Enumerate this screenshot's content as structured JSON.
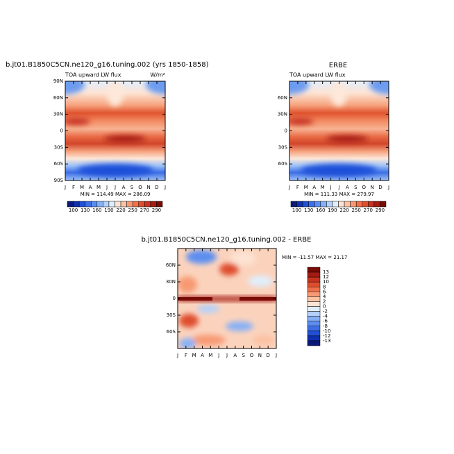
{
  "chart_data": [
    {
      "type": "contour",
      "title": "b.jt01.B1850C5CN.ne120_g16.tuning.002 (yrs 1850-1858)",
      "subtitle": "TOA upward LW flux",
      "units": "W/m²",
      "categories": [
        "J",
        "F",
        "M",
        "A",
        "M",
        "J",
        "J",
        "A",
        "S",
        "O",
        "N",
        "D",
        "J"
      ],
      "ylim": [
        -90,
        90
      ],
      "yticks": [
        {
          "value": 90,
          "label": "90N"
        },
        {
          "value": 60,
          "label": "60N"
        },
        {
          "value": 30,
          "label": "30N"
        },
        0,
        {
          "value": -30,
          "label": "30S"
        },
        {
          "value": -60,
          "label": "60S"
        },
        {
          "value": -90,
          "label": "90S"
        }
      ],
      "stats": "MIN = 114.49 MAX = 286.09",
      "colorbar_labels": [
        100,
        130,
        160,
        190,
        220,
        250,
        270,
        290
      ],
      "colors": [
        "#0b1a7a",
        "#0f30b0",
        "#2150d6",
        "#3d6ee6",
        "#5b8ef0",
        "#86b0f6",
        "#b3d1fb",
        "#e0eefc",
        "#fde3d3",
        "#fbc2a4",
        "#f79a73",
        "#ef7049",
        "#de4e2e",
        "#c63320",
        "#a51b12",
        "#7a0a05"
      ]
    },
    {
      "type": "contour",
      "title": "ERBE",
      "subtitle": "TOA upward LW flux",
      "categories": [
        "J",
        "F",
        "M",
        "A",
        "M",
        "J",
        "J",
        "A",
        "S",
        "O",
        "N",
        "D",
        "J"
      ],
      "ylim": [
        -90,
        90
      ],
      "yticks": [
        {
          "value": 60,
          "label": "60N"
        },
        {
          "value": 30,
          "label": "30N"
        },
        0,
        {
          "value": -30,
          "label": "30S"
        },
        {
          "value": -60,
          "label": "60S"
        }
      ],
      "stats": "MIN = 111.33 MAX = 279.97",
      "colorbar_labels": [
        100,
        130,
        160,
        190,
        220,
        250,
        270,
        290
      ],
      "colors": [
        "#0b1a7a",
        "#0f30b0",
        "#2150d6",
        "#3d6ee6",
        "#5b8ef0",
        "#86b0f6",
        "#b3d1fb",
        "#e0eefc",
        "#fde3d3",
        "#fbc2a4",
        "#f79a73",
        "#ef7049",
        "#de4e2e",
        "#c63320",
        "#a51b12",
        "#7a0a05"
      ]
    },
    {
      "type": "contour",
      "title": "b.jt01.B1850C5CN.ne120_g16.tuning.002 - ERBE",
      "categories": [
        "J",
        "F",
        "M",
        "A",
        "M",
        "J",
        "J",
        "A",
        "S",
        "O",
        "N",
        "D",
        "J"
      ],
      "ylim": [
        -90,
        90
      ],
      "yticks": [
        {
          "value": 60,
          "label": "60N"
        },
        {
          "value": 30,
          "label": "30N"
        },
        0,
        {
          "value": -30,
          "label": "30S"
        },
        {
          "value": -60,
          "label": "60S"
        }
      ],
      "stats": "MIN = -11.57 MAX =  21.17",
      "colorbar_labels": [
        13,
        12,
        10,
        8,
        6,
        4,
        2,
        0,
        -2,
        -4,
        -6,
        -8,
        -10,
        -12,
        -13
      ],
      "colors": [
        "#7a0a05",
        "#a51b12",
        "#c63320",
        "#de4e2e",
        "#ef7049",
        "#f79a73",
        "#fbc2a4",
        "#fde3d3",
        "#e0eefc",
        "#b3d1fb",
        "#86b0f6",
        "#5b8ef0",
        "#3d6ee6",
        "#2150d6",
        "#0f30b0",
        "#0b1a7a"
      ]
    }
  ]
}
